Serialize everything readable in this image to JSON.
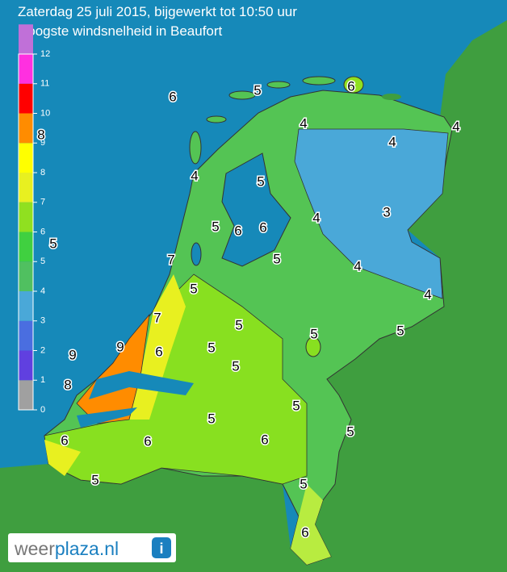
{
  "header": {
    "title": "Zaterdag 25 juli 2015, bijgewerkt tot 10:50 uur",
    "subtitle": "Hoogste windsnelheid in Beaufort"
  },
  "legend": {
    "ticks": [
      0,
      1,
      2,
      3,
      4,
      5,
      6,
      7,
      8,
      9,
      10,
      11,
      12
    ],
    "colors": [
      "#a0a0a0",
      "#6040e0",
      "#4a6ee0",
      "#4aa8d8",
      "#50c060",
      "#40d040",
      "#90e020",
      "#e8f020",
      "#ffff00",
      "#ff8c00",
      "#ff0000",
      "#ff30e0",
      "#c070d8"
    ]
  },
  "map": {
    "labels": [
      "6",
      "5",
      "6",
      "4",
      "4",
      "4",
      "4",
      "5",
      "3",
      "4",
      "5",
      "6",
      "6",
      "5",
      "7",
      "5",
      "4",
      "5",
      "4",
      "7",
      "5",
      "5",
      "5",
      "9",
      "6",
      "5",
      "9",
      "8",
      "5",
      "5",
      "5",
      "5",
      "6",
      "6",
      "6",
      "5",
      "5",
      "6",
      "8"
    ]
  },
  "logo": {
    "parts": [
      "weer",
      "plaza.nl"
    ],
    "icon": "i"
  }
}
